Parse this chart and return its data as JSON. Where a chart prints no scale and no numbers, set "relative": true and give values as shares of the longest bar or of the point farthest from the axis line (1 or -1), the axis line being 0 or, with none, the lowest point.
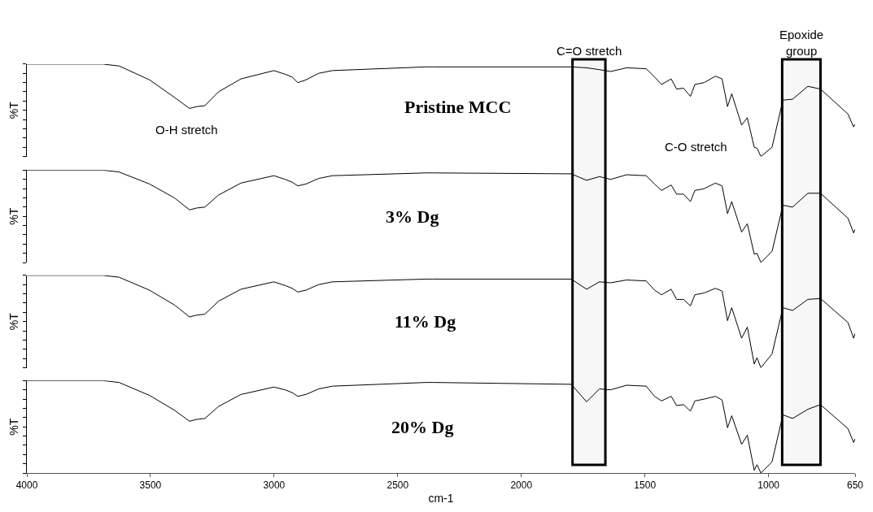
{
  "chart_data": [
    {
      "type": "line",
      "relative": true,
      "ylabel": "%T",
      "tick_labels": false,
      "xlim": [
        4000,
        650
      ],
      "xticks": [
        4000,
        3500,
        3000,
        2500,
        2000,
        1500,
        1000,
        650
      ],
      "x": [
        4000,
        3693,
        3627,
        3504,
        3403,
        3342,
        3313,
        3280,
        3225,
        3134,
        3001,
        2955,
        2927,
        2904,
        2871,
        2820,
        2764,
        2385,
        2356,
        1798,
        1736,
        1684,
        1639,
        1574,
        1495,
        1461,
        1433,
        1394,
        1372,
        1344,
        1316,
        1298,
        1260,
        1215,
        1188,
        1166,
        1149,
        1109,
        1086,
        1058,
        1047,
        1031,
        986,
        942,
        903,
        841,
        790,
        679,
        656,
        650
      ],
      "series": [
        {
          "name": "Pristine MCC",
          "color": "#000000",
          "values": [
            1.0,
            1.0,
            0.98,
            0.83,
            0.64,
            0.52,
            0.54,
            0.55,
            0.7,
            0.84,
            0.93,
            0.89,
            0.86,
            0.8,
            0.83,
            0.9,
            0.93,
            0.97,
            0.97,
            0.97,
            0.96,
            0.94,
            0.92,
            0.96,
            0.95,
            0.86,
            0.78,
            0.84,
            0.73,
            0.74,
            0.65,
            0.78,
            0.8,
            0.87,
            0.84,
            0.54,
            0.68,
            0.34,
            0.42,
            0.1,
            0.09,
            0.0,
            0.1,
            0.61,
            0.62,
            0.76,
            0.73,
            0.46,
            0.32,
            0.35
          ]
        }
      ],
      "annotations": [
        "O-H stretch",
        "C-O stretch"
      ]
    },
    {
      "type": "line",
      "relative": true,
      "ylabel": "%T",
      "tick_labels": false,
      "xlim": [
        4000,
        650
      ],
      "xticks": [
        4000,
        3500,
        3000,
        2500,
        2000,
        1500,
        1000,
        650
      ],
      "x": [
        4000,
        3693,
        3627,
        3504,
        3403,
        3342,
        3313,
        3280,
        3225,
        3134,
        3001,
        2955,
        2927,
        2904,
        2871,
        2820,
        2764,
        2385,
        2356,
        1798,
        1736,
        1684,
        1639,
        1574,
        1495,
        1461,
        1433,
        1394,
        1372,
        1344,
        1316,
        1298,
        1260,
        1215,
        1188,
        1166,
        1149,
        1109,
        1086,
        1058,
        1047,
        1031,
        986,
        942,
        903,
        841,
        790,
        679,
        656,
        650
      ],
      "series": [
        {
          "name": "3% Dg",
          "color": "#000000",
          "values": [
            1.0,
            1.0,
            0.98,
            0.85,
            0.7,
            0.57,
            0.59,
            0.6,
            0.73,
            0.86,
            0.94,
            0.9,
            0.87,
            0.83,
            0.85,
            0.91,
            0.94,
            0.97,
            0.97,
            0.96,
            0.89,
            0.93,
            0.9,
            0.95,
            0.94,
            0.85,
            0.78,
            0.84,
            0.74,
            0.74,
            0.66,
            0.78,
            0.8,
            0.86,
            0.83,
            0.53,
            0.66,
            0.33,
            0.42,
            0.09,
            0.1,
            0.0,
            0.12,
            0.62,
            0.6,
            0.75,
            0.75,
            0.48,
            0.32,
            0.36
          ]
        }
      ]
    },
    {
      "type": "line",
      "relative": true,
      "ylabel": "%T",
      "tick_labels": false,
      "xlim": [
        4000,
        650
      ],
      "xticks": [
        4000,
        3500,
        3000,
        2500,
        2000,
        1500,
        1000,
        650
      ],
      "x": [
        4000,
        3693,
        3627,
        3504,
        3403,
        3342,
        3313,
        3280,
        3225,
        3134,
        3001,
        2955,
        2927,
        2904,
        2871,
        2820,
        2764,
        2385,
        2356,
        1798,
        1736,
        1684,
        1639,
        1574,
        1495,
        1461,
        1433,
        1394,
        1372,
        1344,
        1316,
        1298,
        1260,
        1215,
        1188,
        1166,
        1149,
        1109,
        1086,
        1058,
        1047,
        1031,
        986,
        942,
        903,
        841,
        790,
        679,
        656,
        650
      ],
      "series": [
        {
          "name": "11% Dg",
          "color": "#000000",
          "values": [
            1.0,
            1.0,
            0.98,
            0.84,
            0.68,
            0.55,
            0.57,
            0.58,
            0.72,
            0.85,
            0.93,
            0.89,
            0.86,
            0.82,
            0.84,
            0.9,
            0.93,
            0.96,
            0.96,
            0.96,
            0.85,
            0.93,
            0.92,
            0.95,
            0.94,
            0.84,
            0.79,
            0.85,
            0.74,
            0.74,
            0.67,
            0.79,
            0.81,
            0.86,
            0.83,
            0.51,
            0.65,
            0.32,
            0.44,
            0.04,
            0.11,
            0.0,
            0.15,
            0.65,
            0.62,
            0.74,
            0.75,
            0.49,
            0.32,
            0.37
          ]
        }
      ]
    },
    {
      "type": "line",
      "relative": true,
      "ylabel": "%T",
      "xlabel": "cm-1",
      "tick_labels": "x",
      "xlim": [
        4000,
        650
      ],
      "xticks": [
        4000,
        3500,
        3000,
        2500,
        2000,
        1500,
        1000,
        650
      ],
      "x": [
        4000,
        3693,
        3627,
        3504,
        3403,
        3342,
        3313,
        3280,
        3225,
        3134,
        3001,
        2955,
        2927,
        2904,
        2871,
        2820,
        2764,
        2385,
        2356,
        1798,
        1736,
        1684,
        1639,
        1574,
        1495,
        1461,
        1433,
        1394,
        1372,
        1344,
        1316,
        1298,
        1260,
        1215,
        1188,
        1166,
        1149,
        1109,
        1086,
        1058,
        1047,
        1031,
        986,
        942,
        903,
        841,
        790,
        679,
        656,
        650
      ],
      "series": [
        {
          "name": "20% Dg",
          "color": "#000000",
          "values": [
            1.0,
            1.0,
            0.98,
            0.84,
            0.68,
            0.56,
            0.58,
            0.59,
            0.72,
            0.85,
            0.93,
            0.9,
            0.87,
            0.83,
            0.85,
            0.91,
            0.94,
            0.98,
            0.98,
            0.96,
            0.77,
            0.91,
            0.9,
            0.95,
            0.94,
            0.83,
            0.78,
            0.83,
            0.73,
            0.74,
            0.67,
            0.78,
            0.8,
            0.83,
            0.79,
            0.49,
            0.62,
            0.31,
            0.41,
            0.03,
            0.09,
            0.0,
            0.12,
            0.63,
            0.59,
            0.69,
            0.74,
            0.48,
            0.33,
            0.37
          ]
        }
      ],
      "bands": [
        {
          "axis": "x",
          "from": 1793,
          "to": 1660,
          "label": "C=O stretch",
          "color": "#000000"
        },
        {
          "axis": "x",
          "from": 945,
          "to": 790,
          "label": "Epoxide group",
          "color": "#000000"
        }
      ]
    }
  ]
}
